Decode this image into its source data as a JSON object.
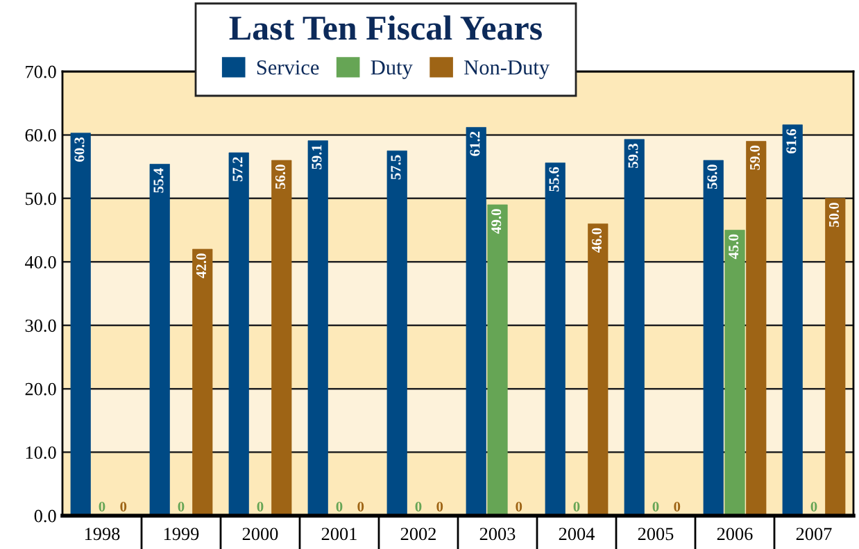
{
  "chart_data": {
    "type": "bar",
    "title": "Last Ten Fiscal Years",
    "categories": [
      "1998",
      "1999",
      "2000",
      "2001",
      "2002",
      "2003",
      "2004",
      "2005",
      "2006",
      "2007"
    ],
    "series": [
      {
        "name": "Service",
        "color": "#004a85",
        "values": [
          60.3,
          55.4,
          57.2,
          59.1,
          57.5,
          61.2,
          55.6,
          59.3,
          56.0,
          61.6
        ],
        "value_labels": [
          "60.3",
          "55.4",
          "57.2",
          "59.1",
          "57.5",
          "61.2",
          "55.6",
          "59.3",
          "56.0",
          "61.6"
        ]
      },
      {
        "name": "Duty",
        "color": "#66a555",
        "values": [
          0,
          0,
          0,
          0,
          0,
          49.0,
          0,
          0,
          45.0,
          0
        ],
        "value_labels": [
          "0",
          "0",
          "0",
          "0",
          "0",
          "49.0",
          "0",
          "0",
          "45.0",
          "0"
        ]
      },
      {
        "name": "Non-Duty",
        "color": "#9e6415",
        "values": [
          0,
          42.0,
          56.0,
          0,
          0,
          0,
          46.0,
          0,
          59.0,
          50.0
        ],
        "value_labels": [
          "0",
          "42.0",
          "56.0",
          "0",
          "0",
          "0",
          "46.0",
          "0",
          "59.0",
          "50.0"
        ]
      }
    ],
    "ylim": [
      0,
      70
    ],
    "yticks": [
      {
        "value": 0,
        "label": "0.0"
      },
      {
        "value": 10,
        "label": "10.0"
      },
      {
        "value": 20,
        "label": "20.0"
      },
      {
        "value": 30,
        "label": "30.0"
      },
      {
        "value": 40,
        "label": "40.0"
      },
      {
        "value": 50,
        "label": "50.0"
      },
      {
        "value": 60,
        "label": "60.0"
      },
      {
        "value": 70,
        "label": "70.0"
      }
    ],
    "bands": [
      {
        "axis": "y",
        "from": 0,
        "to": 10,
        "color": "#fde9b9"
      },
      {
        "axis": "y",
        "from": 10,
        "to": 20,
        "color": "#fdf2da"
      },
      {
        "axis": "y",
        "from": 20,
        "to": 30,
        "color": "#fde9b9"
      },
      {
        "axis": "y",
        "from": 30,
        "to": 40,
        "color": "#fdf2da"
      },
      {
        "axis": "y",
        "from": 40,
        "to": 50,
        "color": "#fde9b9"
      },
      {
        "axis": "y",
        "from": 50,
        "to": 60,
        "color": "#fdf2da"
      },
      {
        "axis": "y",
        "from": 60,
        "to": 70,
        "color": "#fde9b9"
      }
    ],
    "grid": "y",
    "legend": "top"
  }
}
